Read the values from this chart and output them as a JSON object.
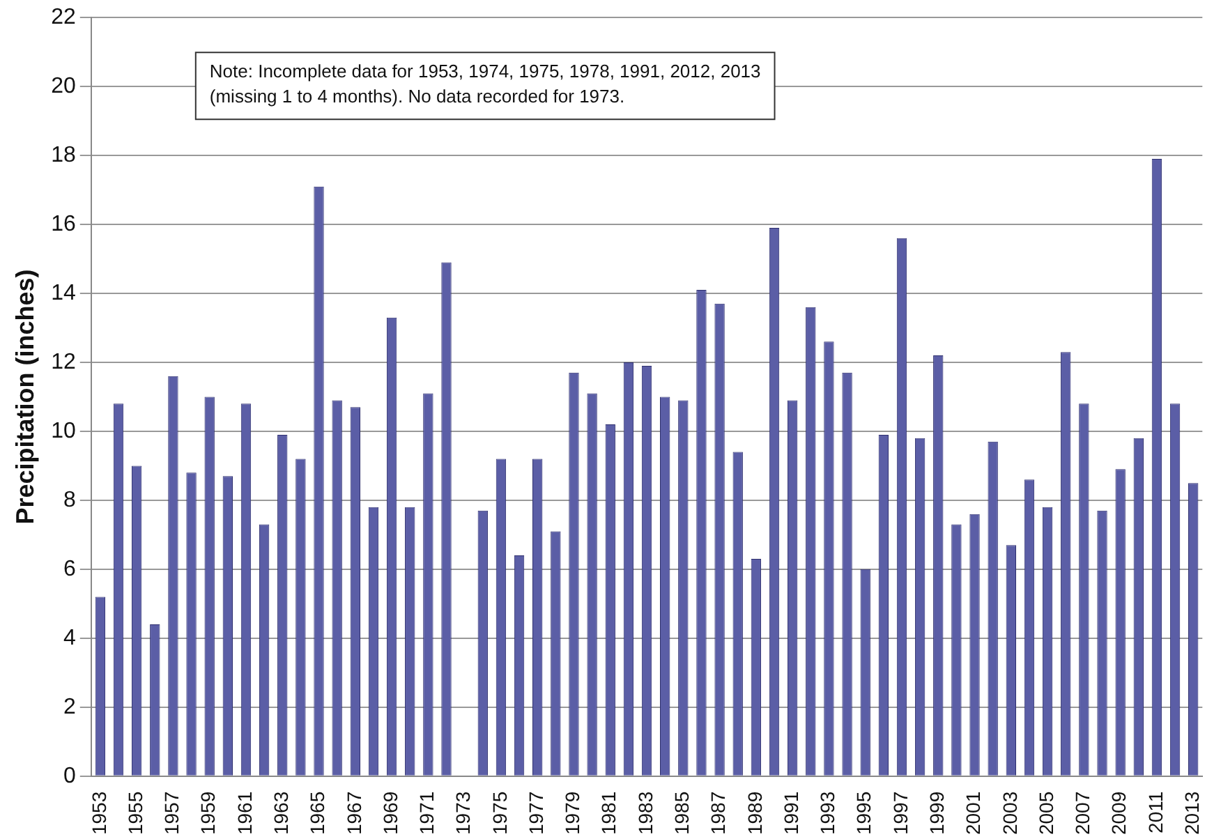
{
  "chart_data": {
    "type": "bar",
    "ylabel": "Precipitation (inches)",
    "categories": [
      "1953",
      null,
      "1955",
      null,
      "1957",
      null,
      "1959",
      null,
      "1961",
      null,
      "1963",
      null,
      "1965",
      null,
      "1967",
      null,
      "1969",
      null,
      "1971",
      null,
      "1973",
      null,
      "1975",
      null,
      "1977",
      null,
      "1979",
      null,
      "1981",
      null,
      "1983",
      null,
      "1985",
      null,
      "1987",
      null,
      "1989",
      null,
      "1991",
      null,
      "1993",
      null,
      "1995",
      null,
      "1997",
      null,
      "1999",
      null,
      "2001",
      null,
      "2003",
      null,
      "2005",
      null,
      "2007",
      null,
      "2009",
      null,
      "2011",
      null,
      "2013"
    ],
    "values": [
      5.2,
      10.8,
      9.0,
      4.4,
      11.6,
      8.8,
      11.0,
      8.7,
      10.8,
      7.3,
      9.9,
      9.2,
      17.1,
      10.9,
      10.7,
      7.8,
      13.3,
      7.8,
      11.1,
      14.9,
      null,
      7.7,
      9.2,
      6.4,
      9.2,
      7.1,
      11.7,
      11.1,
      10.2,
      12.0,
      11.9,
      11.0,
      10.9,
      14.1,
      13.7,
      9.4,
      6.3,
      15.9,
      10.9,
      13.6,
      12.6,
      11.7,
      6.0,
      9.9,
      15.6,
      9.8,
      12.2,
      7.3,
      7.6,
      9.7,
      6.7,
      8.6,
      7.8,
      12.3,
      10.8,
      7.7,
      8.9,
      9.8,
      17.9,
      10.8,
      8.5
    ],
    "color": "#5b5ea6",
    "ylim": [
      0,
      22
    ],
    "yticks": [
      0,
      2,
      4,
      6,
      8,
      10,
      12,
      14,
      16,
      18,
      20,
      22
    ],
    "grid": "y",
    "annotations": [
      "Note: Incomplete data for 1953, 1974, 1975, 1978, 1991, 2012, 2013\n(missing 1 to 4 months). No data recorded for 1973."
    ]
  }
}
